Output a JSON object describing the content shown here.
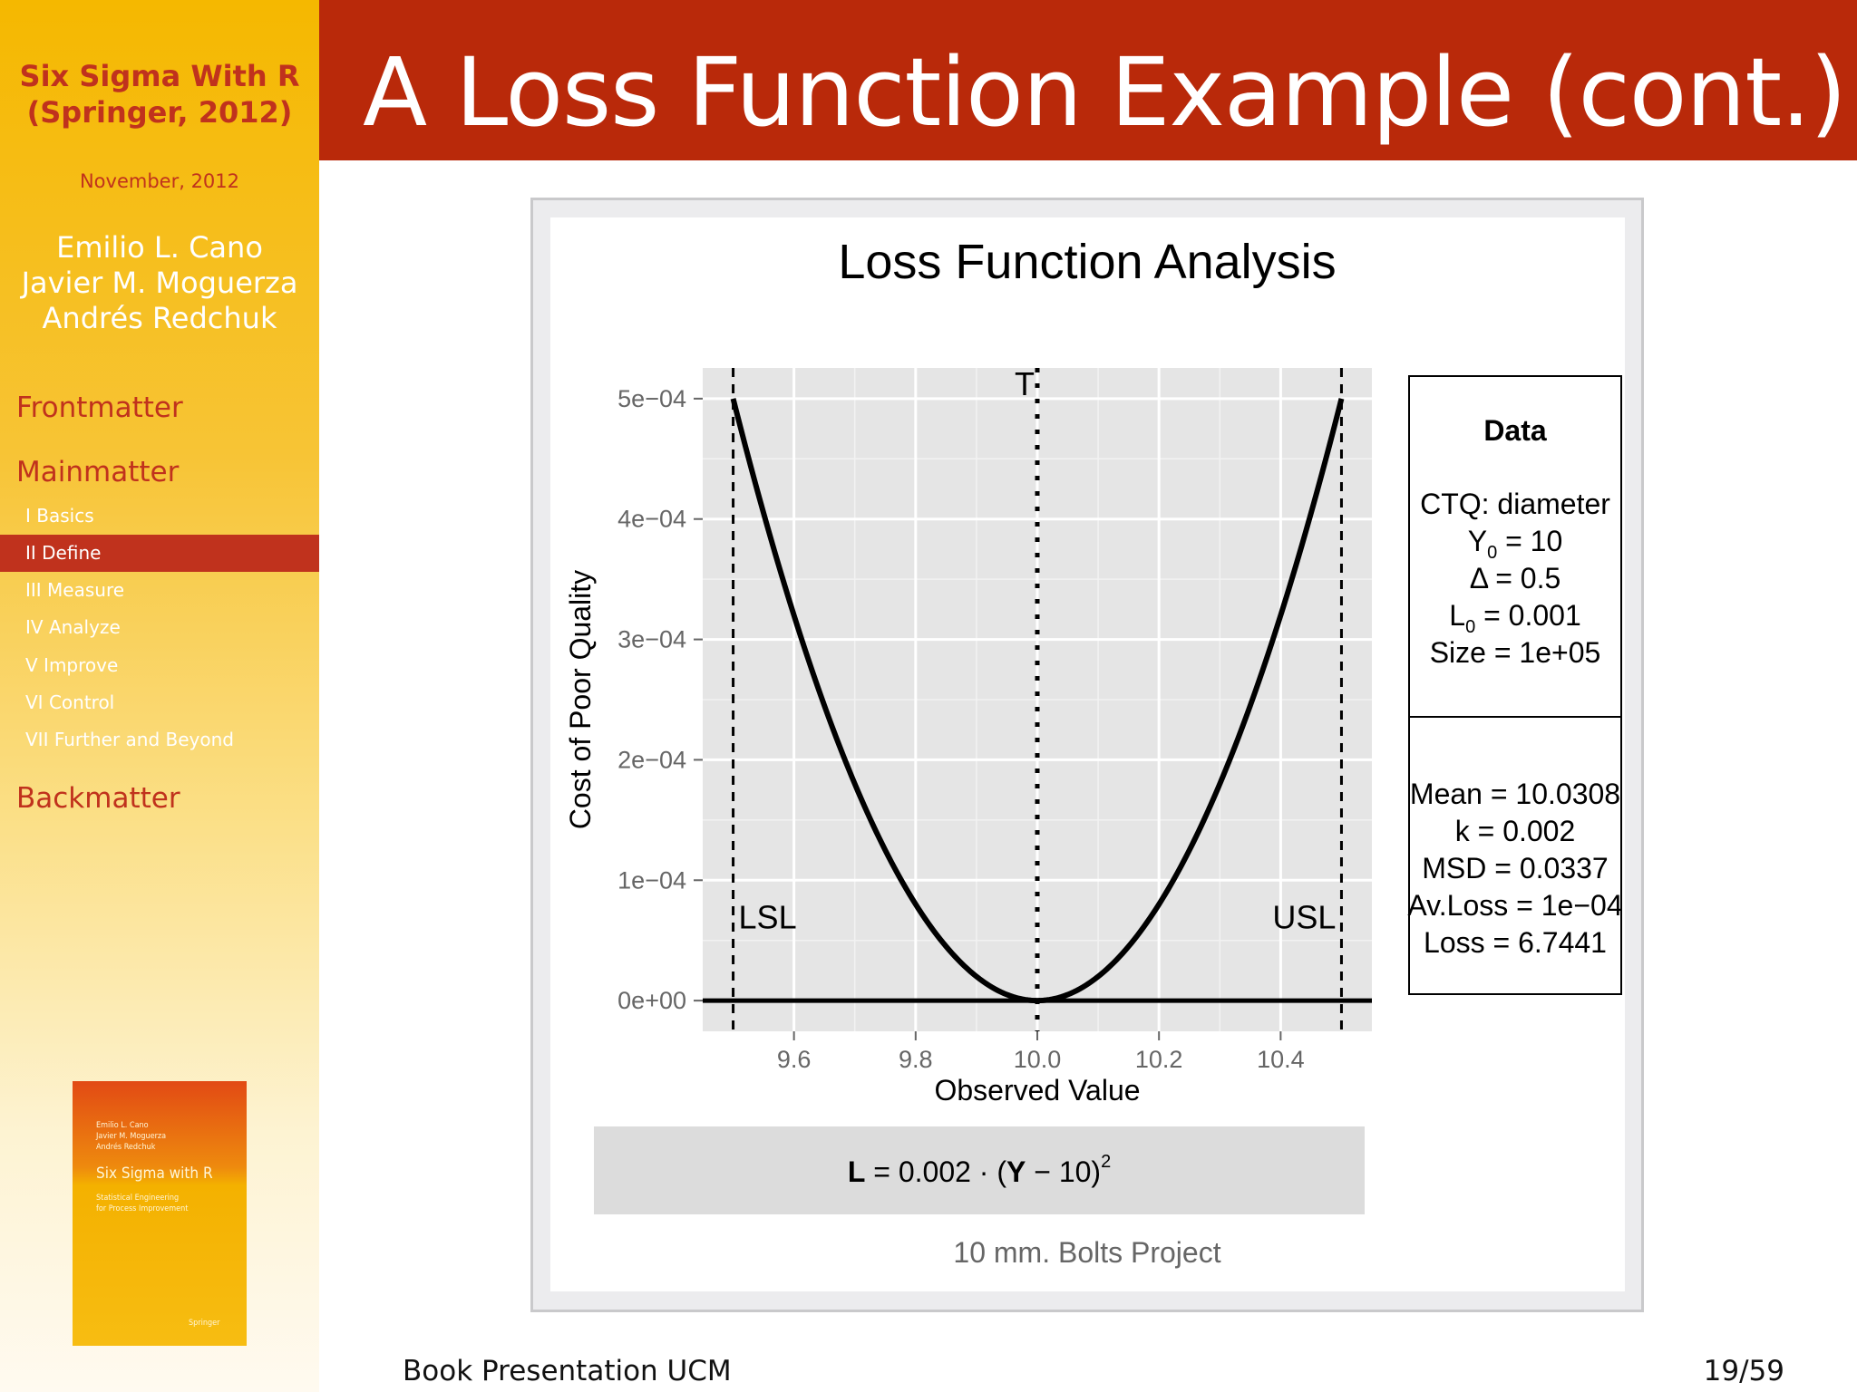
{
  "sidebar": {
    "book_line1": "Six Sigma With R",
    "book_line2": "(Springer, 2012)",
    "date": "November, 2012",
    "authors": [
      "Emilio L. Cano",
      "Javier M. Moguerza",
      "Andrés Redchuk"
    ],
    "sections": {
      "frontmatter": "Frontmatter",
      "mainmatter": "Mainmatter",
      "backmatter": "Backmatter"
    },
    "items": [
      {
        "label": "I Basics",
        "active": false
      },
      {
        "label": "II Define",
        "active": true
      },
      {
        "label": "III Measure",
        "active": false
      },
      {
        "label": "IV Analyze",
        "active": false
      },
      {
        "label": "V Improve",
        "active": false
      },
      {
        "label": "VI Control",
        "active": false
      },
      {
        "label": "VII Further and Beyond",
        "active": false
      }
    ],
    "cover": {
      "authors": [
        "Emilio L. Cano",
        "Javier M. Moguerza",
        "Andrés Redchuk"
      ],
      "title": "Six Sigma with R",
      "subtitle_lines": [
        "Statistical Engineering",
        "for Process Improvement"
      ],
      "publisher": "Springer"
    }
  },
  "header": {
    "title": "A Loss Function Example (cont.)"
  },
  "footer": {
    "left": "Book Presentation UCM",
    "right": "19/59"
  },
  "colors": {
    "header": "#b9290a",
    "accent": "#c0321d",
    "panel": "#e5e5e5",
    "grid": "#ffffff",
    "curve": "#000000"
  },
  "chart_data": {
    "type": "line",
    "title": "Loss Function Analysis",
    "xlabel": "Observed Value",
    "ylabel": "Cost of Poor Quality",
    "xlim": [
      9.45,
      10.55
    ],
    "ylim": [
      -2.55e-05,
      0.0005255
    ],
    "x_ticks": [
      9.6,
      9.8,
      10.0,
      10.2,
      10.4
    ],
    "x_tick_labels": [
      "9.6",
      "9.8",
      "10.0",
      "10.2",
      "10.4"
    ],
    "y_ticks": [
      0,
      0.0001,
      0.0002,
      0.0003,
      0.0004,
      0.0005
    ],
    "y_tick_labels": [
      "0e+00",
      "1e−04",
      "2e−04",
      "3e−04",
      "4e−04",
      "5e−04"
    ],
    "grid": true,
    "curve": {
      "formula": "0.002 * (x - 10)^2",
      "x_range": [
        9.5,
        10.5
      ],
      "k": 0.002,
      "target": 10
    },
    "vlines": [
      {
        "x": 9.5,
        "label": "LSL",
        "style": "dashed"
      },
      {
        "x": 10.0,
        "label": "T",
        "style": "dotted"
      },
      {
        "x": 10.5,
        "label": "USL",
        "style": "dashed"
      }
    ],
    "hline": {
      "y": 0
    },
    "data_box": {
      "title": "Data",
      "top_lines": [
        {
          "text": "CTQ: diameter"
        },
        {
          "main": "Y",
          "sub": "0",
          "rest": " = 10"
        },
        {
          "text": "Δ = 0.5"
        },
        {
          "main": "L",
          "sub": "0",
          "rest": " = 0.001"
        },
        {
          "text": "Size = 1e+05"
        }
      ],
      "bottom_lines": [
        "Mean = 10.0308",
        "k = 0.002",
        "MSD = 0.0337",
        "Av.Loss = 1e−04",
        "Loss = 6.7441"
      ]
    },
    "formula_box": {
      "lhs": "L",
      "middle": " = 0.002 · (",
      "var": "Y",
      "tail": " − 10)",
      "exp": "2"
    },
    "caption": "10 mm. Bolts Project"
  }
}
